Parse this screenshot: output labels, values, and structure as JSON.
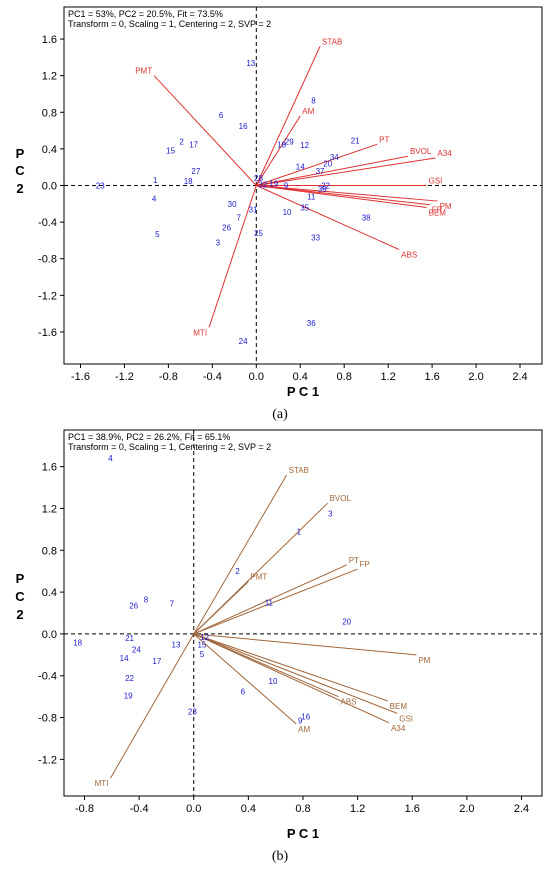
{
  "panel_labels": [
    "(a)",
    "(b)"
  ],
  "chart_data": [
    {
      "type": "scatter",
      "subtype": "biplot",
      "info_line1": "PC1 = 53%, PC2 = 20.5%, Fit = 73.5%",
      "info_line2": "Transform = 0, Scaling = 1, Centering = 2, SVP = 2",
      "xlabel": "P C 1",
      "ylabel": "P C 2",
      "xlim": [
        -1.75,
        2.6
      ],
      "ylim": [
        -1.95,
        1.95
      ],
      "xticks": [
        -1.6,
        -1.2,
        -0.8,
        -0.4,
        0.0,
        0.4,
        0.8,
        1.2,
        1.6,
        2.0,
        2.4
      ],
      "xtick_labels": [
        "-1.6",
        "-1.2",
        "-0.8",
        "-0.4",
        "0.0",
        "0.4",
        "0.8",
        "1.2",
        "1.6",
        "2.0",
        "2.4"
      ],
      "yticks": [
        1.6,
        1.2,
        0.8,
        0.4,
        0.0,
        -0.4,
        -0.8,
        -1.2,
        -1.6
      ],
      "ytick_labels": [
        "1.6",
        "1.2",
        "0.8",
        "0.4",
        "0.0",
        "-0.4",
        "-0.8",
        "-1.2",
        "-1.6"
      ],
      "vector_color": "#e03030",
      "point_color": "#1a1acc",
      "vectors": [
        {
          "label": "STAB",
          "x": 0.58,
          "y": 1.52
        },
        {
          "label": "PMT",
          "x": -0.93,
          "y": 1.2
        },
        {
          "label": "AM",
          "x": 0.4,
          "y": 0.76
        },
        {
          "label": "PT",
          "x": 1.1,
          "y": 0.45
        },
        {
          "label": "BVOL",
          "x": 1.38,
          "y": 0.32
        },
        {
          "label": "A34",
          "x": 1.63,
          "y": 0.3
        },
        {
          "label": "GSI",
          "x": 1.55,
          "y": 0.0
        },
        {
          "label": "PM",
          "x": 1.65,
          "y": -0.17
        },
        {
          "label": "FP",
          "x": 1.58,
          "y": -0.21
        },
        {
          "label": "BEM",
          "x": 1.55,
          "y": -0.24
        },
        {
          "label": "ABS",
          "x": 1.3,
          "y": -0.7
        },
        {
          "label": "MTI",
          "x": -0.43,
          "y": -1.55
        }
      ],
      "points": [
        {
          "label": "23",
          "x": -1.42,
          "y": 0.0
        },
        {
          "label": "1",
          "x": -0.92,
          "y": 0.06
        },
        {
          "label": "4",
          "x": -0.93,
          "y": -0.14
        },
        {
          "label": "5",
          "x": -0.9,
          "y": -0.53
        },
        {
          "label": "15",
          "x": -0.78,
          "y": 0.38
        },
        {
          "label": "2",
          "x": -0.68,
          "y": 0.48
        },
        {
          "label": "17",
          "x": -0.57,
          "y": 0.45
        },
        {
          "label": "18",
          "x": -0.62,
          "y": 0.05
        },
        {
          "label": "27",
          "x": -0.55,
          "y": 0.16
        },
        {
          "label": "6",
          "x": -0.32,
          "y": 0.77
        },
        {
          "label": "16",
          "x": -0.12,
          "y": 0.65
        },
        {
          "label": "13",
          "x": -0.05,
          "y": 1.34
        },
        {
          "label": "30",
          "x": -0.22,
          "y": -0.2
        },
        {
          "label": "31",
          "x": -0.03,
          "y": -0.26
        },
        {
          "label": "7",
          "x": -0.16,
          "y": -0.35
        },
        {
          "label": "26",
          "x": -0.27,
          "y": -0.46
        },
        {
          "label": "3",
          "x": -0.35,
          "y": -0.62
        },
        {
          "label": "25",
          "x": 0.02,
          "y": -0.52
        },
        {
          "label": "28",
          "x": 0.02,
          "y": 0.08
        },
        {
          "label": "32",
          "x": 0.06,
          "y": 0.01
        },
        {
          "label": "19",
          "x": 0.16,
          "y": 0.02
        },
        {
          "label": "9",
          "x": 0.27,
          "y": 0.0
        },
        {
          "label": "14",
          "x": 0.4,
          "y": 0.21
        },
        {
          "label": "10",
          "x": 0.28,
          "y": -0.29
        },
        {
          "label": "11",
          "x": 0.5,
          "y": -0.12
        },
        {
          "label": "35",
          "x": 0.44,
          "y": -0.24
        },
        {
          "label": "33",
          "x": 0.54,
          "y": -0.57
        },
        {
          "label": "12",
          "x": 0.44,
          "y": 0.44
        },
        {
          "label": "29",
          "x": 0.3,
          "y": 0.48
        },
        {
          "label": "18",
          "x": 0.23,
          "y": 0.45
        },
        {
          "label": "8",
          "x": 0.52,
          "y": 0.93
        },
        {
          "label": "21",
          "x": 0.9,
          "y": 0.49
        },
        {
          "label": "34",
          "x": 0.71,
          "y": 0.31
        },
        {
          "label": "20",
          "x": 0.65,
          "y": 0.24
        },
        {
          "label": "37",
          "x": 0.58,
          "y": 0.16
        },
        {
          "label": "22",
          "x": 0.63,
          "y": 0.0
        },
        {
          "label": "39",
          "x": 0.6,
          "y": -0.04
        },
        {
          "label": "38",
          "x": 1.0,
          "y": -0.35
        },
        {
          "label": "36",
          "x": 0.5,
          "y": -1.5
        },
        {
          "label": "24",
          "x": -0.12,
          "y": -1.7
        }
      ]
    },
    {
      "type": "scatter",
      "subtype": "biplot",
      "info_line1": "PC1 = 38.9%, PC2 = 26.2%, Fit = 65.1%",
      "info_line2": "Transform = 0, Scaling = 1, Centering = 2, SVP = 2",
      "xlabel": "P C 1",
      "ylabel": "P C 2",
      "xlim": [
        -0.95,
        2.55
      ],
      "ylim": [
        -1.55,
        1.95
      ],
      "xticks": [
        -0.8,
        -0.4,
        0.0,
        0.4,
        0.8,
        1.2,
        1.6,
        2.0,
        2.4
      ],
      "xtick_labels": [
        "-0.8",
        "-0.4",
        "0.0",
        "0.4",
        "0.8",
        "1.2",
        "1.6",
        "2.0",
        "2.4"
      ],
      "yticks": [
        1.6,
        1.2,
        0.8,
        0.4,
        0.0,
        -0.4,
        -0.8,
        -1.2
      ],
      "ytick_labels": [
        "1.6",
        "1.2",
        "0.8",
        "0.4",
        "0.0",
        "-0.4",
        "-0.8",
        "-1.2"
      ],
      "vector_color": "#a0663a",
      "point_color": "#1a1acc",
      "vectors": [
        {
          "label": "STAB",
          "x": 0.68,
          "y": 1.52
        },
        {
          "label": "BVOL",
          "x": 0.98,
          "y": 1.25
        },
        {
          "label": "PMT",
          "x": 0.4,
          "y": 0.5
        },
        {
          "label": "PT",
          "x": 1.12,
          "y": 0.66
        },
        {
          "label": "FP",
          "x": 1.2,
          "y": 0.62
        },
        {
          "label": "PM",
          "x": 1.63,
          "y": -0.2
        },
        {
          "label": "BEM",
          "x": 1.42,
          "y": -0.64
        },
        {
          "label": "GSI",
          "x": 1.49,
          "y": -0.76
        },
        {
          "label": "A34",
          "x": 1.43,
          "y": -0.85
        },
        {
          "label": "ABS",
          "x": 1.06,
          "y": -0.6
        },
        {
          "label": "AM",
          "x": 0.75,
          "y": -0.86
        },
        {
          "label": "MTI",
          "x": -0.61,
          "y": -1.38
        }
      ],
      "points": [
        {
          "label": "4",
          "x": -0.61,
          "y": 1.68
        },
        {
          "label": "3",
          "x": 1.0,
          "y": 1.15
        },
        {
          "label": "1",
          "x": 0.77,
          "y": 0.98
        },
        {
          "label": "2",
          "x": 0.32,
          "y": 0.6
        },
        {
          "label": "11",
          "x": 0.55,
          "y": 0.3
        },
        {
          "label": "20",
          "x": 1.12,
          "y": 0.12
        },
        {
          "label": "8",
          "x": -0.35,
          "y": 0.33
        },
        {
          "label": "7",
          "x": -0.16,
          "y": 0.29
        },
        {
          "label": "26",
          "x": -0.44,
          "y": 0.27
        },
        {
          "label": "21",
          "x": -0.47,
          "y": -0.04
        },
        {
          "label": "18",
          "x": -0.85,
          "y": -0.08
        },
        {
          "label": "24",
          "x": -0.42,
          "y": -0.15
        },
        {
          "label": "13",
          "x": -0.13,
          "y": -0.1
        },
        {
          "label": "14",
          "x": -0.51,
          "y": -0.23
        },
        {
          "label": "17",
          "x": -0.27,
          "y": -0.26
        },
        {
          "label": "5",
          "x": 0.06,
          "y": -0.19
        },
        {
          "label": "12",
          "x": 0.08,
          "y": -0.03
        },
        {
          "label": "15",
          "x": 0.06,
          "y": -0.1
        },
        {
          "label": "22",
          "x": -0.47,
          "y": -0.42
        },
        {
          "label": "19",
          "x": -0.48,
          "y": -0.59
        },
        {
          "label": "6",
          "x": 0.36,
          "y": -0.55
        },
        {
          "label": "10",
          "x": 0.58,
          "y": -0.45
        },
        {
          "label": "16",
          "x": 0.82,
          "y": -0.79
        },
        {
          "label": "9",
          "x": 0.78,
          "y": -0.83
        },
        {
          "label": "23",
          "x": -0.01,
          "y": -0.74
        }
      ]
    }
  ]
}
